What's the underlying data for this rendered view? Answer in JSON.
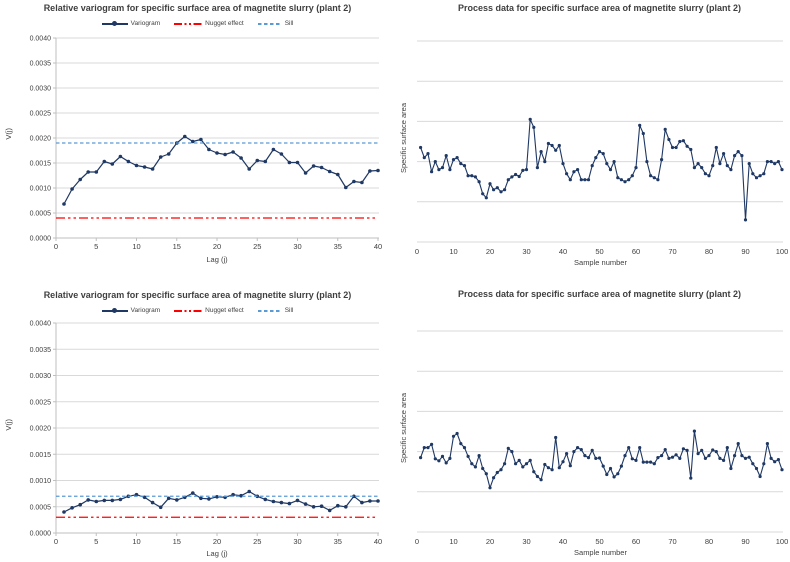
{
  "colors": {
    "series_navy": "#1f3864",
    "nugget_red": "#ff0000",
    "sill_blue": "#5b9bd5",
    "gridline": "#d9d9d9",
    "axis_line": "#bfbfbf",
    "text": "#404040"
  },
  "chart_data": [
    {
      "type": "line",
      "title": "Relative variogram for specific surface area of magnetite slurry (plant 2)",
      "xlabel": "Lag (j)",
      "ylabel": "V(j)",
      "xlim": [
        0,
        40
      ],
      "ylim": [
        0,
        0.004
      ],
      "xticks": [
        "0",
        "5",
        "10",
        "15",
        "20",
        "25",
        "30",
        "35",
        "40"
      ],
      "yticks": [
        "0.0000",
        "0.0005",
        "0.0010",
        "0.0015",
        "0.0020",
        "0.0025",
        "0.0030",
        "0.0035",
        "0.0040"
      ],
      "grid": "horizontal",
      "legend_position": "top",
      "series": [
        {
          "name": "Variogram",
          "kind": "line-markers",
          "color": "#1f3864",
          "x_start": 1,
          "x_step": 1,
          "y": [
            0.00068,
            0.00098,
            0.00117,
            0.00132,
            0.00132,
            0.00153,
            0.00148,
            0.00163,
            0.00153,
            0.00145,
            0.00142,
            0.00138,
            0.00162,
            0.00168,
            0.0019,
            0.00203,
            0.00193,
            0.00197,
            0.00177,
            0.0017,
            0.00167,
            0.00172,
            0.0016,
            0.00138,
            0.00155,
            0.00153,
            0.00177,
            0.00168,
            0.00151,
            0.00151,
            0.0013,
            0.00144,
            0.00141,
            0.00133,
            0.00127,
            0.00101,
            0.00113,
            0.00111,
            0.00134,
            0.00135
          ]
        },
        {
          "name": "Nugget effect",
          "kind": "ref-line",
          "style": "long-dash-dot-dot",
          "color": "#ff0000",
          "y": 0.0004
        },
        {
          "name": "Sill",
          "kind": "ref-line",
          "style": "dashed",
          "color": "#5b9bd5",
          "y": 0.0019
        }
      ]
    },
    {
      "type": "line",
      "title": "Process data for specific surface area of magnetite slurry (plant 2)",
      "xlabel": "Sample number",
      "ylabel": "Specific surface area",
      "xlim": [
        0,
        100
      ],
      "ylim": [
        0,
        5
      ],
      "ygrid_step": 1,
      "xticks": [
        "0",
        "10",
        "20",
        "30",
        "40",
        "50",
        "60",
        "70",
        "80",
        "90",
        "100"
      ],
      "yticks": [],
      "y_axis_unlabeled": true,
      "y_units": "gridline units (bottom gridline = 0, one unit per gridline; no numeric labels shown)",
      "grid": "horizontal",
      "series": [
        {
          "kind": "line-markers",
          "color": "#1f3864",
          "x_start": 1,
          "x_step": 1,
          "y": [
            2.35,
            2.1,
            2.2,
            1.75,
            2.0,
            1.8,
            1.85,
            2.15,
            1.8,
            2.05,
            2.1,
            1.95,
            1.9,
            1.65,
            1.65,
            1.62,
            1.5,
            1.2,
            1.1,
            1.45,
            1.3,
            1.35,
            1.25,
            1.3,
            1.55,
            1.62,
            1.68,
            1.63,
            1.78,
            1.8,
            3.05,
            2.85,
            1.85,
            2.25,
            2.0,
            2.45,
            2.4,
            2.28,
            2.4,
            1.95,
            1.7,
            1.55,
            1.75,
            1.8,
            1.55,
            1.55,
            1.55,
            1.9,
            2.1,
            2.25,
            2.2,
            1.95,
            1.8,
            2.0,
            1.6,
            1.55,
            1.5,
            1.55,
            1.65,
            1.85,
            2.9,
            2.7,
            2.0,
            1.65,
            1.6,
            1.55,
            2.05,
            2.8,
            2.55,
            2.35,
            2.35,
            2.5,
            2.52,
            2.38,
            2.3,
            1.85,
            1.95,
            1.85,
            1.7,
            1.65,
            1.9,
            2.35,
            1.95,
            2.2,
            1.9,
            1.8,
            2.15,
            2.25,
            2.15,
            0.55,
            1.95,
            1.7,
            1.6,
            1.65,
            1.7,
            2.0,
            2.0,
            1.95,
            2.0,
            1.8
          ]
        }
      ]
    },
    {
      "type": "line",
      "title": "Relative variogram for specific surface area of magnetite slurry (plant 2)",
      "xlabel": "Lag (j)",
      "ylabel": "V(j)",
      "xlim": [
        0,
        40
      ],
      "ylim": [
        0,
        0.004
      ],
      "xticks": [
        "0",
        "5",
        "10",
        "15",
        "20",
        "25",
        "30",
        "35",
        "40"
      ],
      "yticks": [
        "0.0000",
        "0.0005",
        "0.0010",
        "0.0015",
        "0.0020",
        "0.0025",
        "0.0030",
        "0.0035",
        "0.0040"
      ],
      "grid": "horizontal",
      "legend_position": "top",
      "series": [
        {
          "name": "Variogram",
          "kind": "line-markers",
          "color": "#1f3864",
          "x_start": 1,
          "x_step": 1,
          "y": [
            0.0004,
            0.00048,
            0.00054,
            0.00063,
            0.0006,
            0.00062,
            0.00062,
            0.00064,
            0.0007,
            0.00073,
            0.00068,
            0.00058,
            0.00049,
            0.00066,
            0.00063,
            0.00068,
            0.00076,
            0.00066,
            0.00065,
            0.00069,
            0.00068,
            0.00073,
            0.00071,
            0.00079,
            0.0007,
            0.00064,
            0.0006,
            0.00058,
            0.00056,
            0.00062,
            0.00055,
            0.0005,
            0.00051,
            0.00043,
            0.00052,
            0.0005,
            0.0007,
            0.00058,
            0.00061,
            0.00061
          ]
        },
        {
          "name": "Nugget effect",
          "kind": "ref-line",
          "style": "long-dash-dot-dot",
          "color": "#ff0000",
          "y": 0.0003
        },
        {
          "name": "Sill",
          "kind": "ref-line",
          "style": "dashed",
          "color": "#5b9bd5",
          "y": 0.0007
        }
      ]
    },
    {
      "type": "line",
      "title": "Process data for specific surface area of magnetite slurry (plant 2)",
      "xlabel": "Sample number",
      "ylabel": "Specific surface area",
      "xlim": [
        0,
        100
      ],
      "ylim": [
        0,
        5
      ],
      "ygrid_step": 1,
      "xticks": [
        "0",
        "10",
        "20",
        "30",
        "40",
        "50",
        "60",
        "70",
        "80",
        "90",
        "100"
      ],
      "yticks": [],
      "y_axis_unlabeled": true,
      "y_units": "gridline units (bottom gridline = 0, one unit per gridline; no numeric labels shown)",
      "grid": "horizontal",
      "series": [
        {
          "kind": "line-markers",
          "color": "#1f3864",
          "x_start": 1,
          "x_step": 1,
          "y": [
            1.85,
            2.1,
            2.1,
            2.18,
            1.82,
            1.77,
            1.88,
            1.72,
            1.83,
            2.38,
            2.45,
            2.2,
            2.1,
            1.88,
            1.7,
            1.62,
            1.9,
            1.58,
            1.45,
            1.1,
            1.35,
            1.48,
            1.55,
            1.7,
            2.08,
            2.0,
            1.7,
            1.78,
            1.62,
            1.7,
            1.78,
            1.5,
            1.38,
            1.3,
            1.68,
            1.6,
            1.55,
            2.35,
            1.6,
            1.75,
            1.95,
            1.65,
            2.0,
            2.1,
            2.05,
            1.9,
            1.85,
            2.03,
            1.83,
            1.84,
            1.64,
            1.43,
            1.58,
            1.37,
            1.45,
            1.64,
            1.9,
            2.1,
            1.82,
            1.78,
            2.1,
            1.74,
            1.74,
            1.74,
            1.7,
            1.85,
            1.9,
            2.05,
            1.83,
            1.86,
            1.92,
            1.83,
            2.07,
            2.03,
            1.34,
            2.51,
            1.95,
            2.03,
            1.83,
            1.9,
            2.04,
            2.0,
            1.83,
            1.78,
            2.1,
            1.58,
            1.9,
            2.2,
            1.9,
            1.83,
            1.86,
            1.7,
            1.58,
            1.38,
            1.7,
            2.2,
            1.83,
            1.75,
            1.8,
            1.55
          ]
        }
      ]
    }
  ]
}
